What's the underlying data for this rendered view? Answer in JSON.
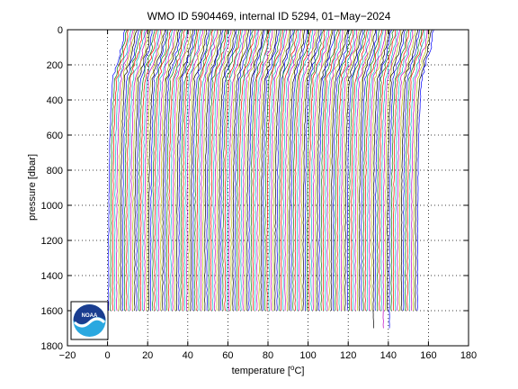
{
  "chart_data": {
    "type": "line",
    "title": "WMO ID 5904469, internal ID 5294, 01−May−2024",
    "xlabel": "temperature [",
    "xlabel_unit": "o",
    "xlabel_tail": "C]",
    "ylabel": "pressure [dbar]",
    "xlim": [
      -20,
      180
    ],
    "ylim": [
      0,
      1800
    ],
    "y_reversed": true,
    "x_ticks": [
      "−20",
      "0",
      "20",
      "40",
      "60",
      "80",
      "100",
      "120",
      "140",
      "160",
      "180"
    ],
    "x_tick_values": [
      -20,
      0,
      20,
      40,
      60,
      80,
      100,
      120,
      140,
      160,
      180
    ],
    "y_ticks": [
      "0",
      "200",
      "400",
      "600",
      "800",
      "1000",
      "1200",
      "1400",
      "1600",
      "1800"
    ],
    "y_tick_values": [
      0,
      200,
      400,
      600,
      800,
      1000,
      1200,
      1400,
      1600,
      1800
    ],
    "grid": true,
    "grid_style": "dotted",
    "series_colors": [
      "#0000ff",
      "#008000",
      "#ff0000",
      "#00bfbf",
      "#bf00bf",
      "#bfbf00",
      "#000000"
    ],
    "profiles": {
      "count": 155,
      "x_offset_start": 0,
      "x_offset_step": 1,
      "surface_temperature": 8.5,
      "deep_temperature": 0.5,
      "max_pressure": 1600,
      "deep_profiles": [
        {
          "x_offset": 132,
          "max_pressure": 1700
        },
        {
          "x_offset": 137,
          "max_pressure": 1700
        },
        {
          "x_offset": 140,
          "max_pressure": 1710
        }
      ]
    },
    "logo": {
      "text": "NOAA",
      "colors": [
        "#1a3d8f",
        "#2aa8e0",
        "#ffffff"
      ]
    }
  }
}
